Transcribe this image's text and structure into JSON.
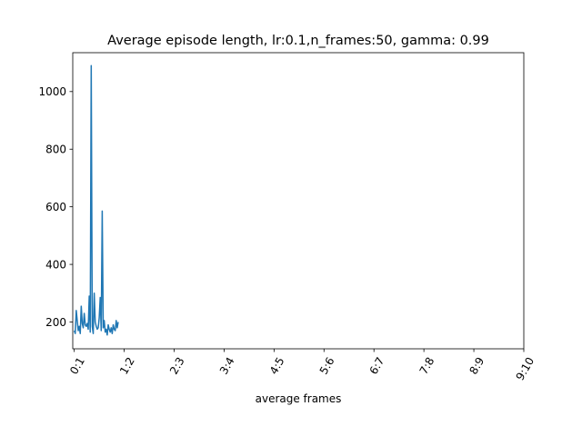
{
  "chart_data": {
    "type": "line",
    "title": "Average episode length, lr:0.1,n_frames:50, gamma: 0.99",
    "xlabel": "average frames",
    "ylabel": "",
    "x_tick_labels": [
      "0:1",
      "1:2",
      "2:3",
      "3:4",
      "4:5",
      "5:6",
      "6:7",
      "7:8",
      "8:9",
      "9:10"
    ],
    "x_tick_values": [
      0,
      1,
      2,
      3,
      4,
      5,
      6,
      7,
      8,
      9
    ],
    "y_ticks": [
      200,
      400,
      600,
      800,
      1000
    ],
    "xlim": [
      -0.03,
      9.0
    ],
    "ylim": [
      107,
      1135
    ],
    "grid": false,
    "colors": {
      "series": "#1f77b4"
    },
    "series": [
      {
        "x": [
          0.0,
          0.02,
          0.04,
          0.06,
          0.08,
          0.1,
          0.12,
          0.14,
          0.16,
          0.18,
          0.2,
          0.22,
          0.24,
          0.26,
          0.28,
          0.3,
          0.32,
          0.34,
          0.36,
          0.38,
          0.4,
          0.42,
          0.44,
          0.46,
          0.48,
          0.5,
          0.52,
          0.54,
          0.56,
          0.58,
          0.6,
          0.62,
          0.64,
          0.66,
          0.68,
          0.7,
          0.72,
          0.74,
          0.76,
          0.78,
          0.8,
          0.82,
          0.84,
          0.86,
          0.88
        ],
        "values": [
          170,
          160,
          240,
          205,
          170,
          185,
          160,
          255,
          195,
          180,
          230,
          190,
          185,
          195,
          175,
          290,
          165,
          1090,
          185,
          160,
          300,
          200,
          185,
          175,
          180,
          215,
          285,
          170,
          585,
          180,
          205,
          165,
          175,
          155,
          190,
          175,
          165,
          180,
          160,
          190,
          175,
          170,
          205,
          180,
          200
        ]
      }
    ]
  }
}
